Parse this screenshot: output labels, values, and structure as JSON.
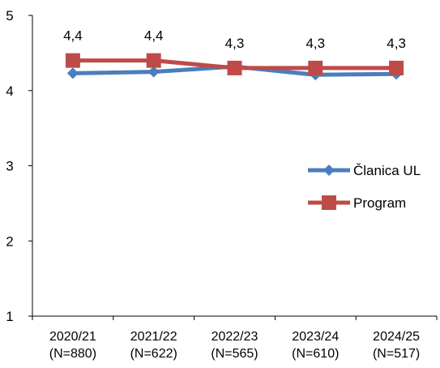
{
  "chart_data": {
    "type": "line",
    "categories": [
      "2020/21\n(N=880)",
      "2021/22\n(N=622)",
      "2022/23\n(N=565)",
      "2023/24\n(N=610)",
      "2024/25\n(N=517)"
    ],
    "category_lines": [
      [
        "2020/21",
        "(N=880)"
      ],
      [
        "2021/22",
        "(N=622)"
      ],
      [
        "2022/23",
        "(N=565)"
      ],
      [
        "2023/24",
        "(N=610)"
      ],
      [
        "2024/25",
        "(N=517)"
      ]
    ],
    "series": [
      {
        "name": "Članica UL",
        "values": [
          4.23,
          4.25,
          4.32,
          4.21,
          4.22
        ],
        "color": "#4a7ebb",
        "marker": "diamond"
      },
      {
        "name": "Program",
        "values": [
          4.4,
          4.4,
          4.3,
          4.3,
          4.3
        ],
        "color": "#be4b48",
        "marker": "square"
      }
    ],
    "data_labels": [
      "4,4",
      "4,4",
      "4,3",
      "4,3",
      "4,3"
    ],
    "ylim": [
      1,
      5
    ],
    "yticks": [
      "1",
      "2",
      "3",
      "4",
      "5"
    ],
    "grid": false,
    "legend_position": "right"
  }
}
